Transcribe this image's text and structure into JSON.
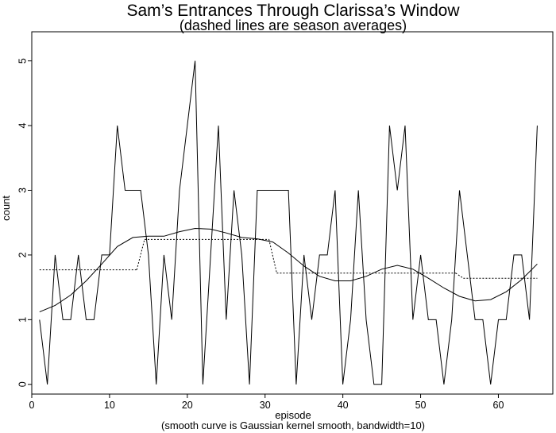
{
  "chart_data": {
    "type": "line",
    "title": "Sam’s Entrances Through Clarissa’s Window",
    "subtitle": "(dashed lines are season averages)",
    "xlabel": "episode",
    "xnote": "(smooth curve is Gaussian kernel smooth, bandwidth=10)",
    "ylabel": "count",
    "xlim": [
      0,
      67
    ],
    "ylim": [
      -0.15,
      5.45
    ],
    "x_ticks": [
      0,
      10,
      20,
      30,
      40,
      50,
      60
    ],
    "y_ticks": [
      0,
      1,
      2,
      3,
      4,
      5
    ],
    "grid": false,
    "series": [
      {
        "style": "solid",
        "x": [
          1,
          2,
          3,
          4,
          5,
          6,
          7,
          8,
          9,
          10,
          11,
          12,
          13,
          14,
          15,
          16,
          17,
          18,
          19,
          20,
          21,
          22,
          23,
          24,
          25,
          26,
          27,
          28,
          29,
          30,
          31,
          32,
          33,
          34,
          35,
          36,
          37,
          38,
          39,
          40,
          41,
          42,
          43,
          44,
          45,
          46,
          47,
          48,
          49,
          50,
          51,
          52,
          53,
          54,
          55,
          56,
          57,
          58,
          59,
          60,
          61,
          62,
          63,
          64,
          65
        ],
        "values": [
          1,
          0,
          2,
          1,
          1,
          2,
          1,
          1,
          2,
          2,
          4,
          3,
          3,
          3,
          2,
          0,
          2,
          1,
          3,
          4,
          5,
          0,
          2,
          4,
          1,
          3,
          2,
          0,
          3,
          3,
          3,
          3,
          3,
          0,
          2,
          1,
          2,
          2,
          3,
          0,
          1,
          3,
          1,
          0,
          0,
          4,
          3,
          4,
          1,
          2,
          1,
          1,
          0,
          1,
          3,
          2,
          1,
          1,
          0,
          1,
          1,
          2,
          2,
          1,
          4
        ]
      },
      {
        "style": "dashed",
        "segments": [
          {
            "x": [
              1,
              13.5
            ],
            "y": 1.77
          },
          {
            "x": [
              14.5,
              30.5
            ],
            "y": 2.24
          },
          {
            "x": [
              31.5,
              54.5
            ],
            "y": 1.72
          },
          {
            "x": [
              55.5,
              65
            ],
            "y": 1.64
          }
        ]
      },
      {
        "style": "smooth",
        "x": [
          1,
          3,
          5,
          7,
          9,
          11,
          13,
          15,
          17,
          19,
          21,
          23,
          25,
          27,
          29,
          31,
          33,
          35,
          37,
          39,
          41,
          43,
          45,
          47,
          49,
          51,
          53,
          55,
          57,
          59,
          61,
          63,
          65
        ],
        "values": [
          1.12,
          1.22,
          1.38,
          1.6,
          1.86,
          2.13,
          2.27,
          2.29,
          2.29,
          2.36,
          2.41,
          2.4,
          2.34,
          2.27,
          2.25,
          2.2,
          2.03,
          1.83,
          1.67,
          1.6,
          1.6,
          1.67,
          1.78,
          1.84,
          1.78,
          1.64,
          1.49,
          1.36,
          1.29,
          1.31,
          1.43,
          1.62,
          1.86
        ]
      }
    ]
  }
}
